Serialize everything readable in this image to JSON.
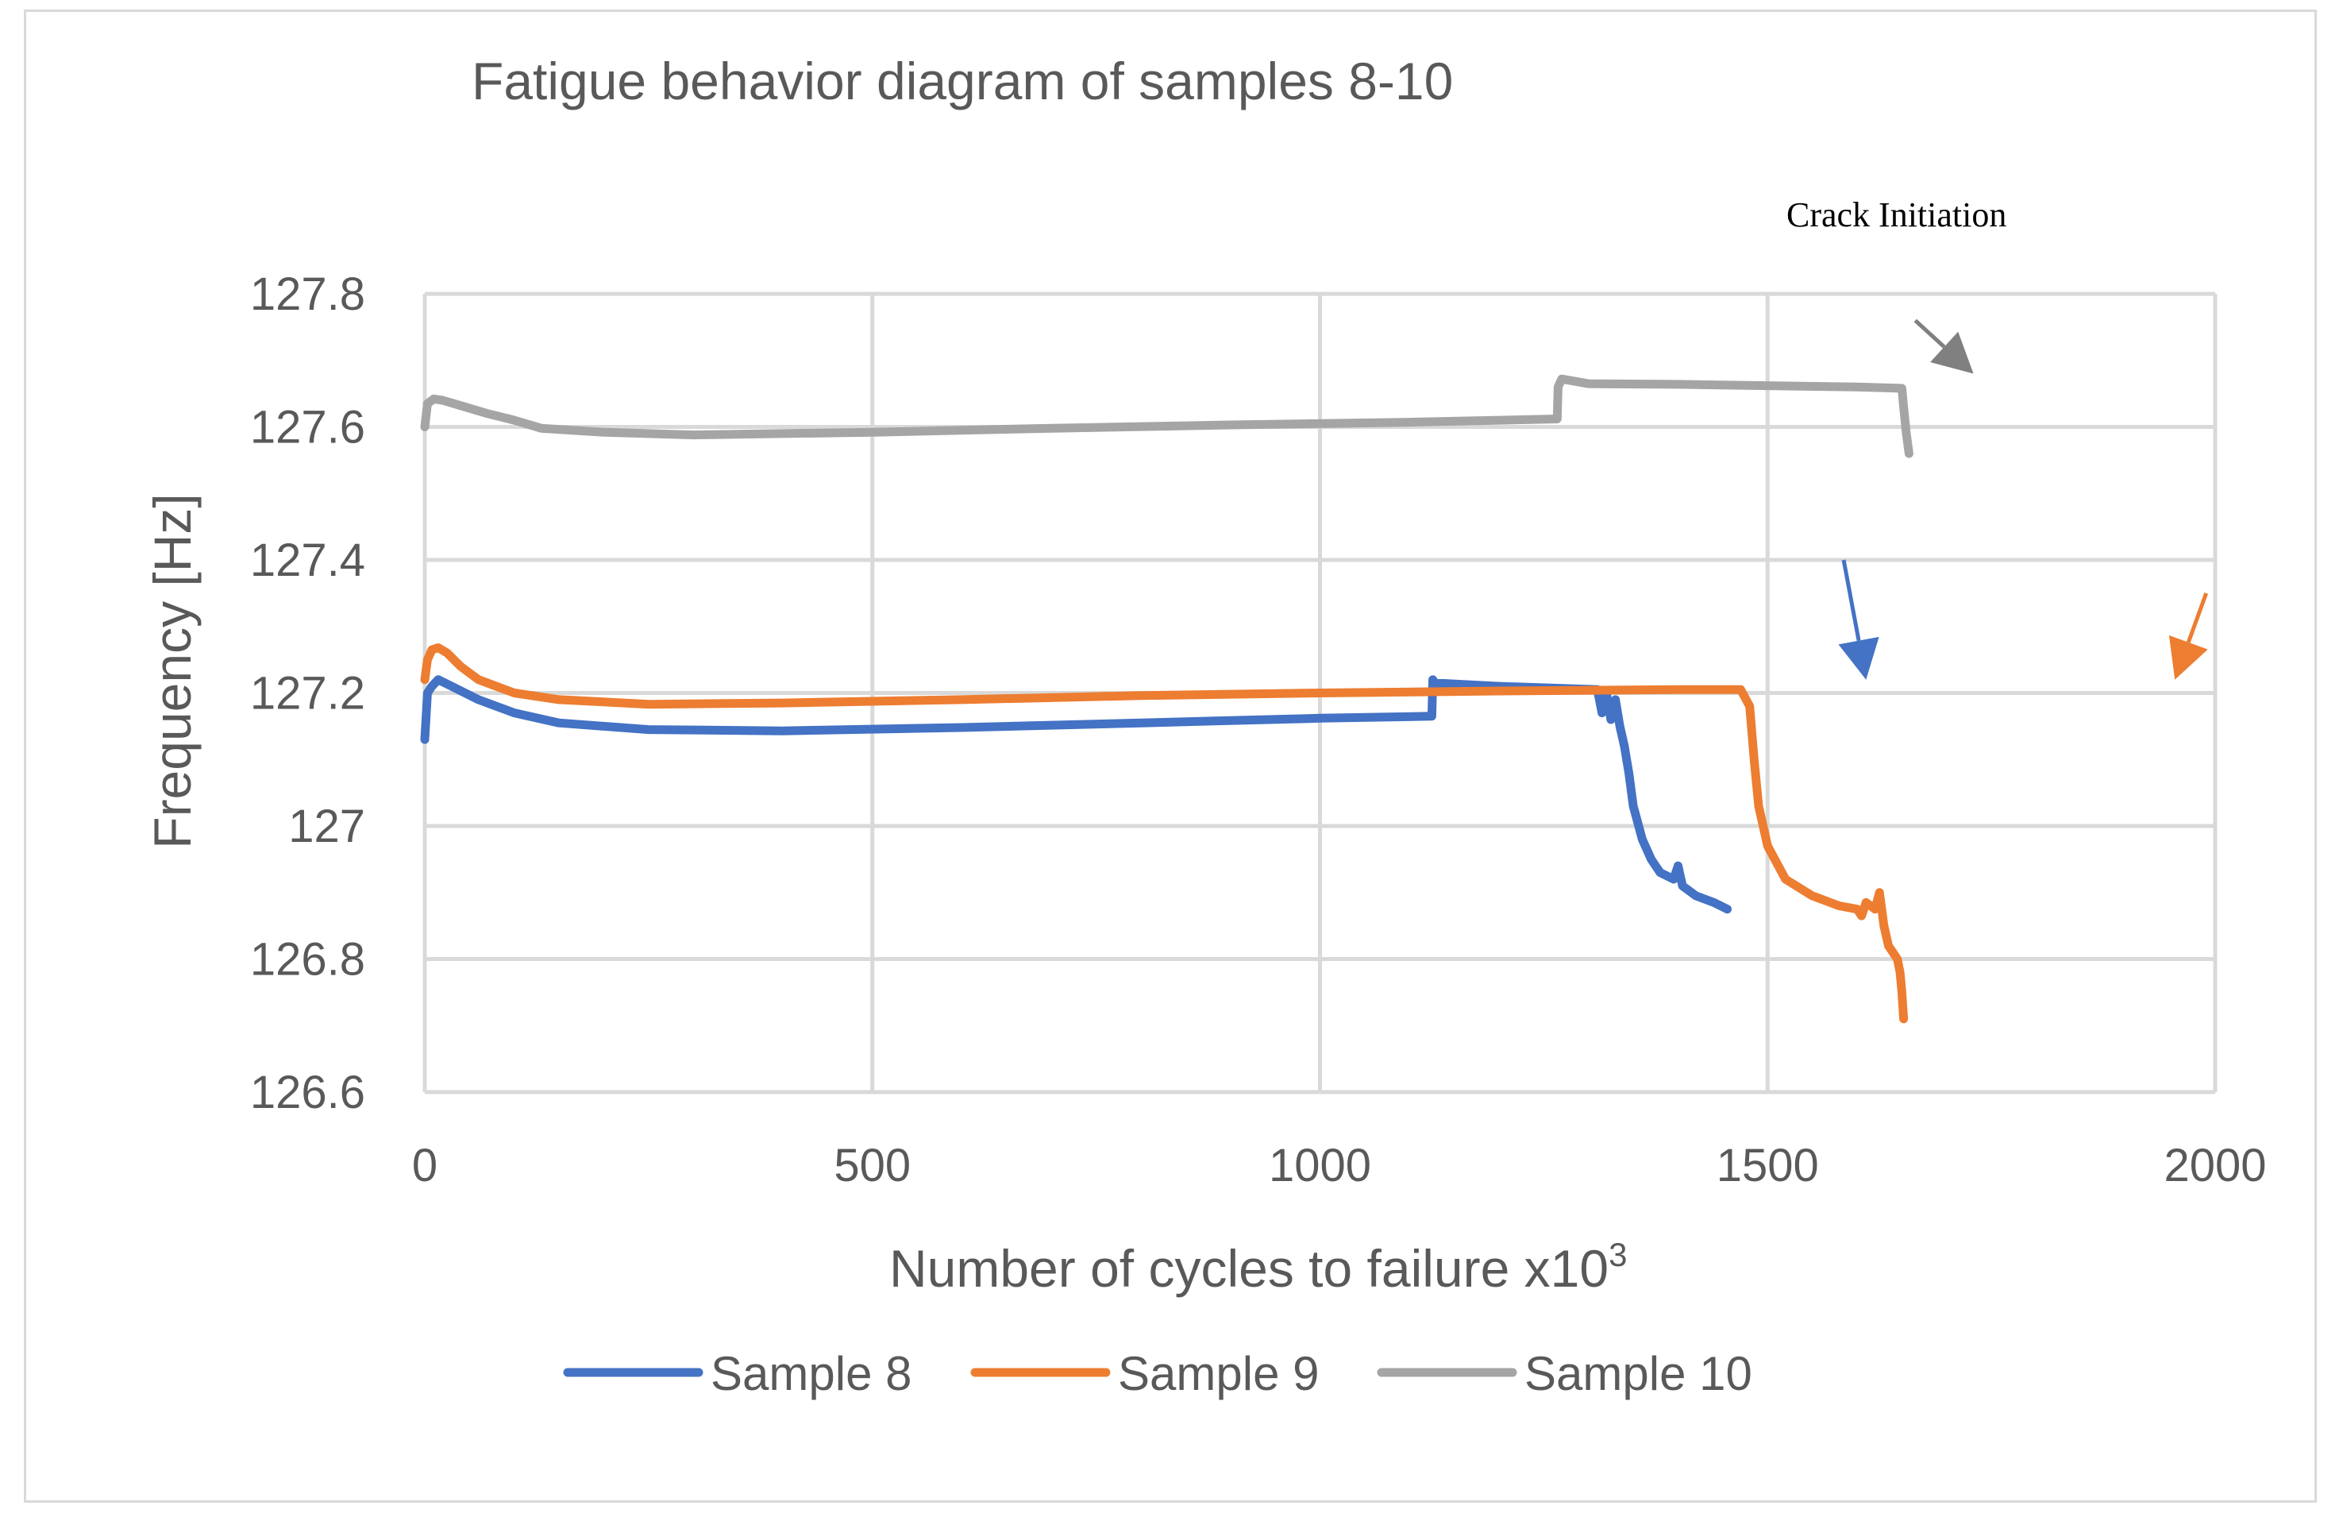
{
  "chart_data": {
    "type": "line",
    "title": "Fatigue behavior diagram of samples 8-10",
    "xlabel": "Number of cycles to failure x10",
    "xlabel_superscript": "3",
    "ylabel": "Frequency [Hz]",
    "xlim": [
      0,
      2000
    ],
    "ylim": [
      126.6,
      127.8
    ],
    "x_ticks": [
      "0",
      "500",
      "1000",
      "1500",
      "2000"
    ],
    "y_ticks": [
      "126.6",
      "126.8",
      "127",
      "127.2",
      "127.4",
      "127.6",
      "127.8"
    ],
    "x_tick_values": [
      0,
      500,
      1000,
      1500,
      2000
    ],
    "y_tick_values": [
      126.6,
      126.8,
      127.0,
      127.2,
      127.4,
      127.6,
      127.8
    ],
    "grid": true,
    "legend_position": "bottom",
    "annotation": "Crack Initiation",
    "arrow_annotations": [
      {
        "series": "Sample 10",
        "color": "#808080",
        "from": [
          1665,
          127.76
        ],
        "to": [
          1730,
          127.68
        ]
      },
      {
        "series": "Sample 8",
        "color": "#4472c4",
        "from": [
          1585,
          127.4
        ],
        "to": [
          1610,
          127.22
        ]
      },
      {
        "series": "Sample 9",
        "color": "#ed7d31",
        "from": [
          1990,
          127.35
        ],
        "to": [
          1955,
          127.22
        ]
      }
    ],
    "series": [
      {
        "name": "Sample 8",
        "color": "#4472c4",
        "x": [
          0,
          3,
          8,
          15,
          30,
          60,
          100,
          150,
          250,
          400,
          600,
          800,
          1000,
          1125,
          1126,
          1128,
          1200,
          1310,
          1315,
          1320,
          1325,
          1330,
          1335,
          1340,
          1345,
          1350,
          1360,
          1370,
          1380,
          1395,
          1400,
          1405,
          1420,
          1440,
          1455
        ],
        "y": [
          127.13,
          127.2,
          127.21,
          127.22,
          127.21,
          127.19,
          127.17,
          127.155,
          127.145,
          127.143,
          127.148,
          127.155,
          127.162,
          127.165,
          127.22,
          127.215,
          127.21,
          127.205,
          127.17,
          127.2,
          127.16,
          127.19,
          127.15,
          127.12,
          127.08,
          127.03,
          126.98,
          126.95,
          126.93,
          126.92,
          126.94,
          126.91,
          126.895,
          126.885,
          126.875
        ]
      },
      {
        "name": "Sample 9",
        "color": "#ed7d31",
        "x": [
          0,
          3,
          8,
          15,
          25,
          40,
          60,
          100,
          150,
          250,
          400,
          600,
          800,
          1000,
          1200,
          1400,
          1470,
          1480,
          1485,
          1490,
          1500,
          1520,
          1550,
          1580,
          1600,
          1605,
          1610,
          1620,
          1625,
          1630,
          1635,
          1640,
          1645,
          1648,
          1650,
          1652
        ],
        "y": [
          127.22,
          127.25,
          127.265,
          127.268,
          127.26,
          127.24,
          127.22,
          127.2,
          127.19,
          127.183,
          127.185,
          127.19,
          127.196,
          127.2,
          127.203,
          127.205,
          127.205,
          127.18,
          127.1,
          127.03,
          126.97,
          126.92,
          126.895,
          126.88,
          126.875,
          126.865,
          126.885,
          126.875,
          126.9,
          126.85,
          126.82,
          126.81,
          126.8,
          126.78,
          126.75,
          126.71
        ]
      },
      {
        "name": "Sample 10",
        "color": "#a5a5a5",
        "x": [
          0,
          3,
          10,
          20,
          40,
          70,
          100,
          130,
          200,
          300,
          500,
          700,
          900,
          1100,
          1265,
          1266,
          1270,
          1300,
          1400,
          1500,
          1600,
          1650,
          1652,
          1655,
          1658
        ],
        "y": [
          127.6,
          127.635,
          127.642,
          127.64,
          127.632,
          127.62,
          127.61,
          127.598,
          127.592,
          127.588,
          127.592,
          127.598,
          127.603,
          127.607,
          127.612,
          127.66,
          127.672,
          127.665,
          127.664,
          127.662,
          127.66,
          127.658,
          127.63,
          127.59,
          127.56
        ]
      }
    ]
  }
}
